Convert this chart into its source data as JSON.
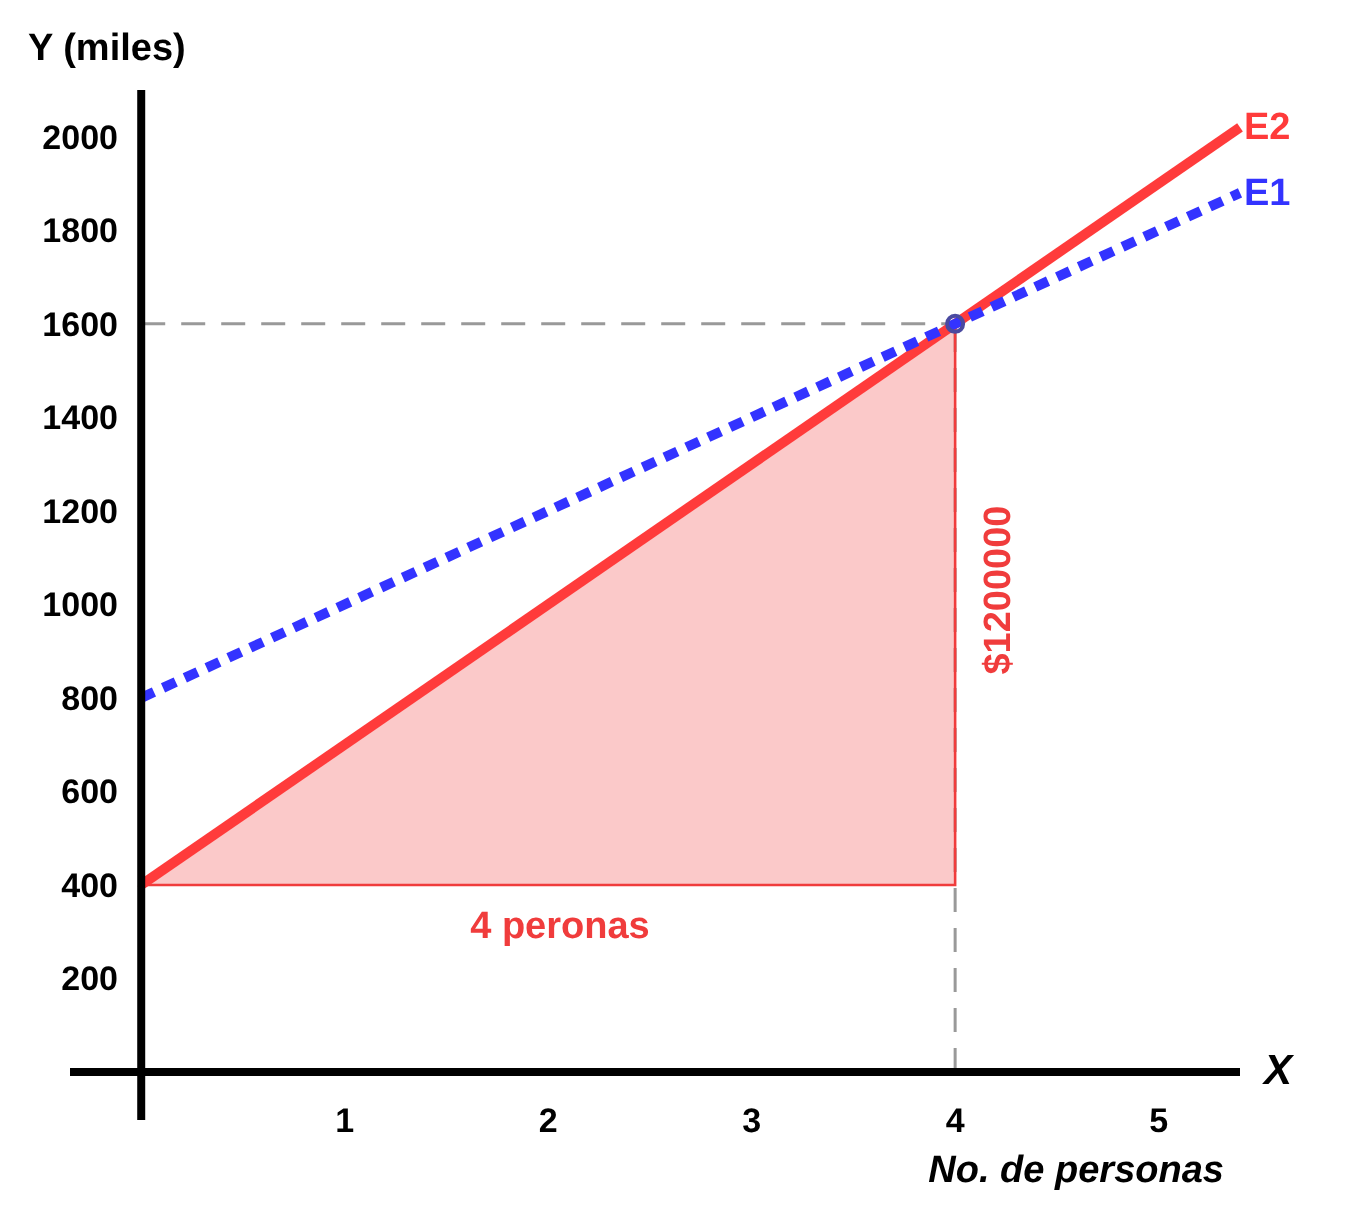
{
  "chart_data": {
    "type": "line",
    "xlabel": "X",
    "ylabel": "Y (miles)",
    "xlim": [
      -0.35,
      5.4
    ],
    "ylim": [
      0,
      2100
    ],
    "xticks": [
      1,
      2,
      3,
      4,
      5
    ],
    "yticks": [
      200,
      400,
      600,
      800,
      1000,
      1200,
      1400,
      1600,
      1800,
      2000
    ],
    "series": [
      {
        "type": "area",
        "x": [
          0,
          4,
          4
        ],
        "values": [
          400,
          1600,
          400
        ],
        "color": "#f03c3c"
      },
      {
        "type": "line",
        "name": "E2",
        "x": [
          0,
          5.4
        ],
        "values": [
          400,
          2020
        ],
        "color": "#ff3b3b",
        "line_style": "solid"
      },
      {
        "type": "line",
        "name": "E1",
        "x": [
          0,
          5.4
        ],
        "values": [
          800,
          1880
        ],
        "color": "#3333ff",
        "line_style": "dashed"
      },
      {
        "type": "scatter",
        "x": [
          4
        ],
        "values": [
          1600
        ],
        "color": "#4a4aa0",
        "marker": "circle"
      }
    ],
    "ref_lines": [
      {
        "axis": "y",
        "value": 1600,
        "color": "#999999",
        "line_style": "dashed"
      },
      {
        "axis": "x",
        "value": 4,
        "color": "#999999",
        "line_style": "dashed"
      }
    ],
    "annotations": [
      "4 peronas",
      "$1200000",
      "No. de personas"
    ],
    "grid": false,
    "legend": false
  }
}
